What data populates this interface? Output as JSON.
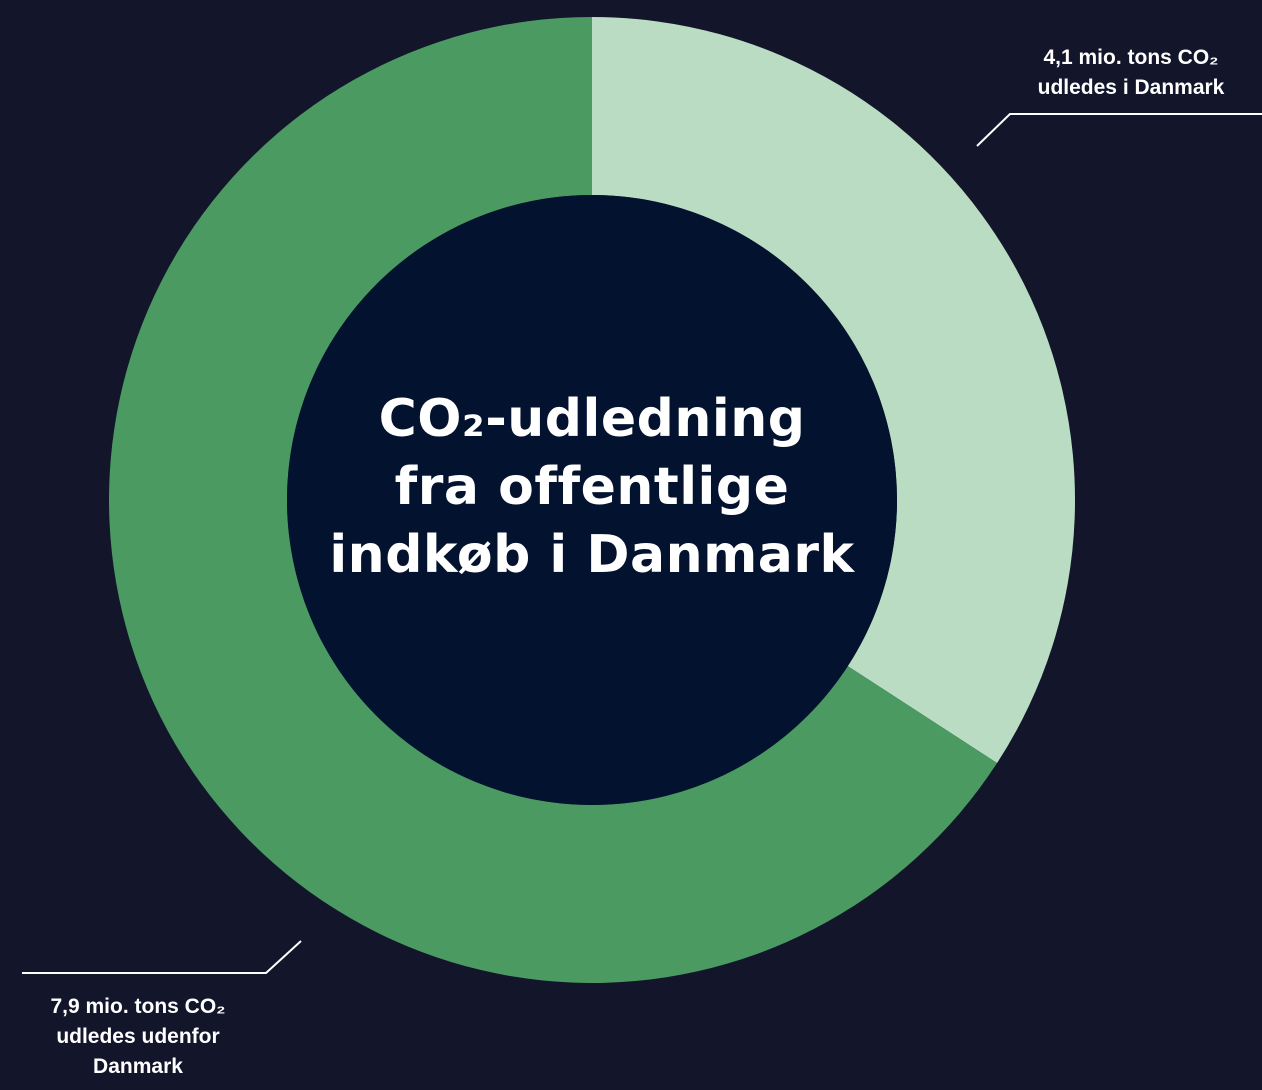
{
  "chart_data": {
    "type": "pie",
    "donut": true,
    "unit": "mio. tons CO₂",
    "center_title": [
      "CO₂-udledning",
      "fra offentlige",
      "indkøb i Danmark"
    ],
    "slices": [
      {
        "value": 4.1,
        "label_lines": [
          "4,1 mio. tons CO₂",
          "udledes i Danmark"
        ],
        "color": "#b9dcc3"
      },
      {
        "value": 7.9,
        "label_lines": [
          "7,9 mio. tons CO₂",
          "udledes udenfor",
          "Danmark"
        ],
        "color": "#4a9a62"
      }
    ],
    "colors": {
      "background": "#13162a",
      "hole": "#03122e",
      "text": "#ffffff",
      "leader_line": "#ffffff"
    },
    "legend": "none"
  }
}
